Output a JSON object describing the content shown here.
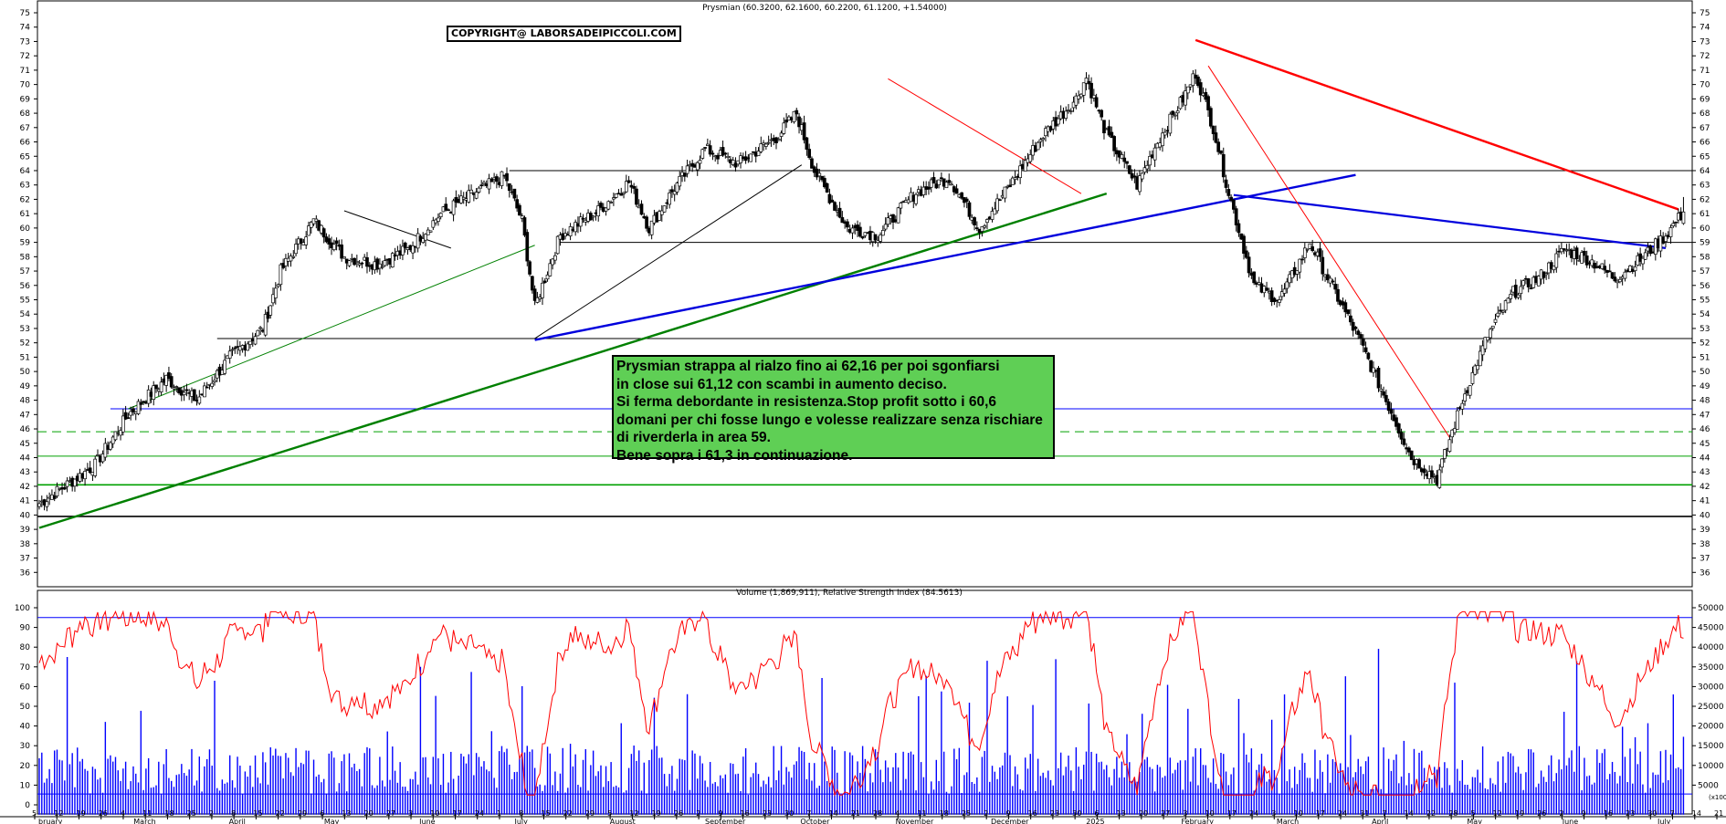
{
  "header": {
    "price_title": "Prysmian (60.3200, 62.1600, 60.2200, 61.1200, +1.54000)",
    "volume_title": "Volume (1,869,911), Relative Strength Index (84.5613)",
    "copyright": "COPYRIGHT@ LABORSADEIPICCOLI.COM",
    "scale_label": "(x100)"
  },
  "annotation": {
    "lines": [
      "Prysmian strappa al rialzo fino ai 62,16 per poi sgonfiarsi",
      "in close sui 61,12 con scambi in aumento deciso.",
      "Si ferma debordante in resistenza.Stop profit sotto i 60,6",
      "domani per chi fosse lungo e volesse realizzare senza rischiare",
      "di riverderla in area 59.",
      "Bene sopra i 61,3 in continuazione."
    ]
  },
  "colors": {
    "candle": "#000000",
    "rsi": "#ff0000",
    "volume": "#0000ff",
    "trend_red": "#ff0000",
    "trend_blue": "#0000dd",
    "trend_green": "#008000",
    "note_bg": "#5fcf55"
  },
  "chart_data": [
    {
      "type": "candlestick",
      "title": "Prysmian (60.3200, 62.1600, 60.2200, 61.1200, +1.54000)",
      "ylim": [
        35,
        75
      ],
      "y_ticks": [
        36,
        37,
        38,
        39,
        40,
        41,
        42,
        43,
        44,
        45,
        46,
        47,
        48,
        49,
        50,
        51,
        52,
        53,
        54,
        55,
        56,
        57,
        58,
        59,
        60,
        61,
        62,
        63,
        64,
        65,
        66,
        67,
        68,
        69,
        70,
        71,
        72,
        73,
        74,
        75
      ],
      "x_tick_labels": [
        "5",
        "12",
        "19",
        "26",
        "4",
        "11",
        "18",
        "25",
        "2",
        "8",
        "15",
        "22",
        "29",
        "6",
        "13",
        "20",
        "27",
        "3",
        "10",
        "17",
        "24",
        "1",
        "8",
        "15",
        "22",
        "29",
        "5",
        "12",
        "19",
        "26",
        "2",
        "9",
        "16",
        "23",
        "30",
        "7",
        "14",
        "21",
        "28",
        "4",
        "11",
        "18",
        "25",
        "2",
        "9",
        "16",
        "23",
        "30",
        "6",
        "13",
        "20",
        "27",
        "3",
        "10",
        "17",
        "24",
        "3",
        "10",
        "17",
        "24",
        "31",
        "7",
        "14",
        "22",
        "28",
        "5",
        "12",
        "19",
        "26",
        "2",
        "9",
        "16",
        "23",
        "30",
        "7",
        "14",
        "21"
      ],
      "months": [
        "bruary",
        "March",
        "April",
        "May",
        "June",
        "July",
        "August",
        "September",
        "October",
        "November",
        "December",
        "2025",
        "February",
        "March",
        "April",
        "May",
        "June",
        "July"
      ],
      "close_anchors": [
        [
          0,
          40.8
        ],
        [
          10,
          42
        ],
        [
          22,
          43.5
        ],
        [
          35,
          47
        ],
        [
          50,
          49.5
        ],
        [
          62,
          48
        ],
        [
          75,
          51
        ],
        [
          88,
          53
        ],
        [
          95,
          57
        ],
        [
          108,
          60.5
        ],
        [
          120,
          58
        ],
        [
          133,
          57.5
        ],
        [
          145,
          58.5
        ],
        [
          158,
          61
        ],
        [
          170,
          62.3
        ],
        [
          183,
          63.6
        ],
        [
          190,
          60.5
        ],
        [
          195,
          54.5
        ],
        [
          205,
          59.5
        ],
        [
          220,
          61.2
        ],
        [
          232,
          63.2
        ],
        [
          240,
          60
        ],
        [
          250,
          62.8
        ],
        [
          262,
          65.5
        ],
        [
          275,
          64.5
        ],
        [
          290,
          66.3
        ],
        [
          298,
          68
        ],
        [
          305,
          64
        ],
        [
          318,
          60
        ],
        [
          330,
          59.5
        ],
        [
          345,
          62.5
        ],
        [
          358,
          63.5
        ],
        [
          370,
          60
        ],
        [
          382,
          63
        ],
        [
          395,
          66.5
        ],
        [
          408,
          69
        ],
        [
          412,
          70.5
        ],
        [
          420,
          66.5
        ],
        [
          432,
          63
        ],
        [
          440,
          66
        ],
        [
          450,
          69
        ],
        [
          455,
          70.8
        ],
        [
          462,
          67
        ],
        [
          468,
          62.5
        ],
        [
          478,
          56
        ],
        [
          488,
          55
        ],
        [
          500,
          59
        ],
        [
          510,
          55.5
        ],
        [
          520,
          52
        ],
        [
          532,
          47.2
        ],
        [
          540,
          44
        ],
        [
          550,
          42.5
        ],
        [
          560,
          48
        ],
        [
          570,
          52.5
        ],
        [
          580,
          55.5
        ],
        [
          590,
          56.5
        ],
        [
          600,
          58.5
        ],
        [
          610,
          57.8
        ],
        [
          620,
          56.5
        ],
        [
          630,
          57.8
        ],
        [
          640,
          59.5
        ],
        [
          647,
          61.12
        ]
      ],
      "last_bar": {
        "open": 60.32,
        "high": 62.16,
        "low": 60.22,
        "close": 61.12,
        "change": 1.54
      },
      "horizontal_levels": [
        {
          "value": 39.9,
          "color": "black"
        },
        {
          "value": 42.1,
          "color": "green"
        },
        {
          "value": 44.1,
          "color": "green"
        },
        {
          "value": 45.8,
          "color": "green",
          "style": "dashed"
        },
        {
          "value": 47.4,
          "color": "blue"
        },
        {
          "value": 52.3,
          "color": "black"
        },
        {
          "value": 59.0,
          "color": "black"
        },
        {
          "value": 64.0,
          "color": "black"
        }
      ]
    },
    {
      "type": "bar+line",
      "title": "Volume (1,869,911), Relative Strength Index (84.5613)",
      "rsi_ylim": [
        -10,
        100
      ],
      "rsi_ticks": [
        0,
        10,
        20,
        30,
        40,
        50,
        60,
        70,
        80,
        90,
        100
      ],
      "volume_ticks": [
        "5000",
        "10000",
        "15000",
        "20000",
        "25000",
        "30000",
        "35000",
        "40000",
        "45000",
        "50000"
      ],
      "volume_unit": "(x100)",
      "last_rsi": 84.5613,
      "last_volume": 1869911
    }
  ]
}
